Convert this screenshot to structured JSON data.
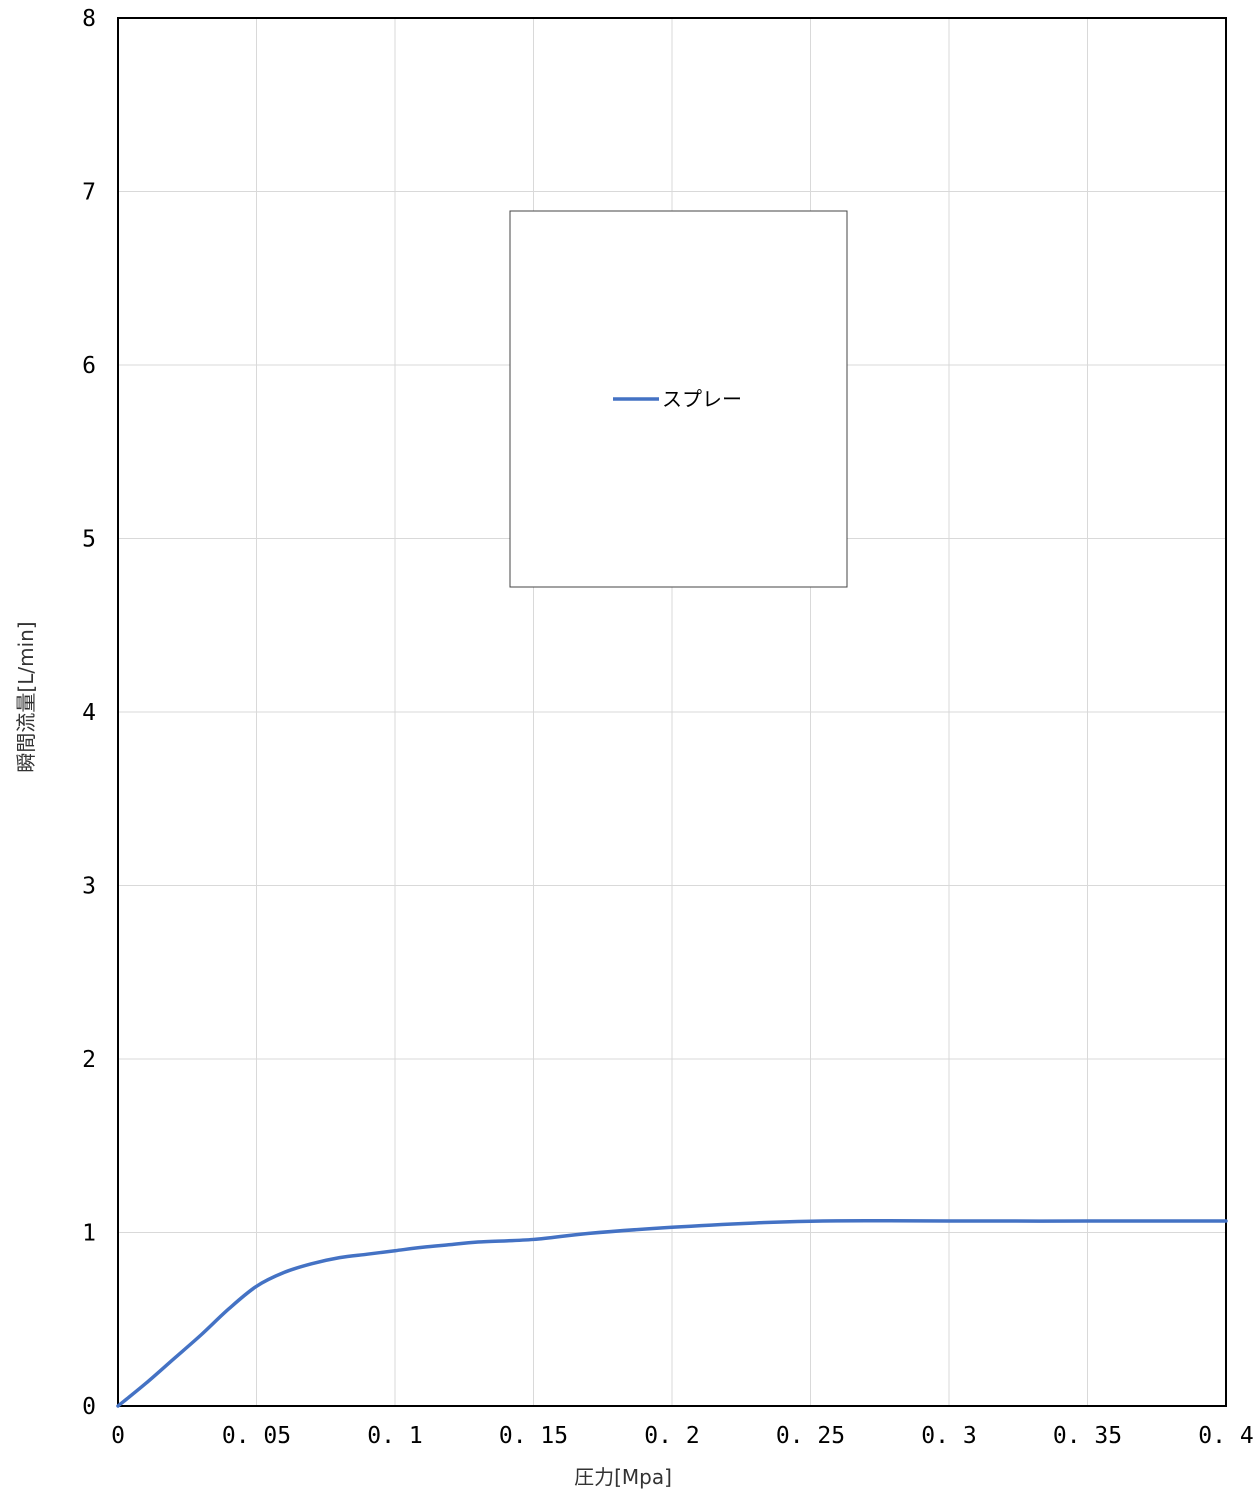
{
  "chart_data": {
    "type": "line",
    "title": "",
    "xlabel": "圧力[Mpa]",
    "ylabel": "瞬間流量[L/min]",
    "xlim": [
      0,
      0.4
    ],
    "ylim": [
      0,
      8
    ],
    "x_ticks": [
      "0",
      "0. 05",
      "0. 1",
      "0. 15",
      "0. 2",
      "0. 25",
      "0. 3",
      "0. 35",
      "0. 4"
    ],
    "y_ticks": [
      "0",
      "1",
      "2",
      "3",
      "4",
      "5",
      "6",
      "7",
      "8"
    ],
    "grid": true,
    "legend_position": "upper-center",
    "series": [
      {
        "name": "スプレー",
        "color": "#4472C4",
        "x": [
          0,
          0.01,
          0.02,
          0.03,
          0.04,
          0.05,
          0.06,
          0.07,
          0.08,
          0.09,
          0.1,
          0.11,
          0.12,
          0.13,
          0.15,
          0.17,
          0.2,
          0.23,
          0.25,
          0.27,
          0.3,
          0.35,
          0.4
        ],
        "y": [
          0,
          0.13,
          0.27,
          0.41,
          0.56,
          0.69,
          0.77,
          0.82,
          0.855,
          0.875,
          0.895,
          0.915,
          0.93,
          0.945,
          0.96,
          0.995,
          1.03,
          1.055,
          1.065,
          1.068,
          1.066,
          1.066,
          1.066
        ]
      }
    ]
  }
}
